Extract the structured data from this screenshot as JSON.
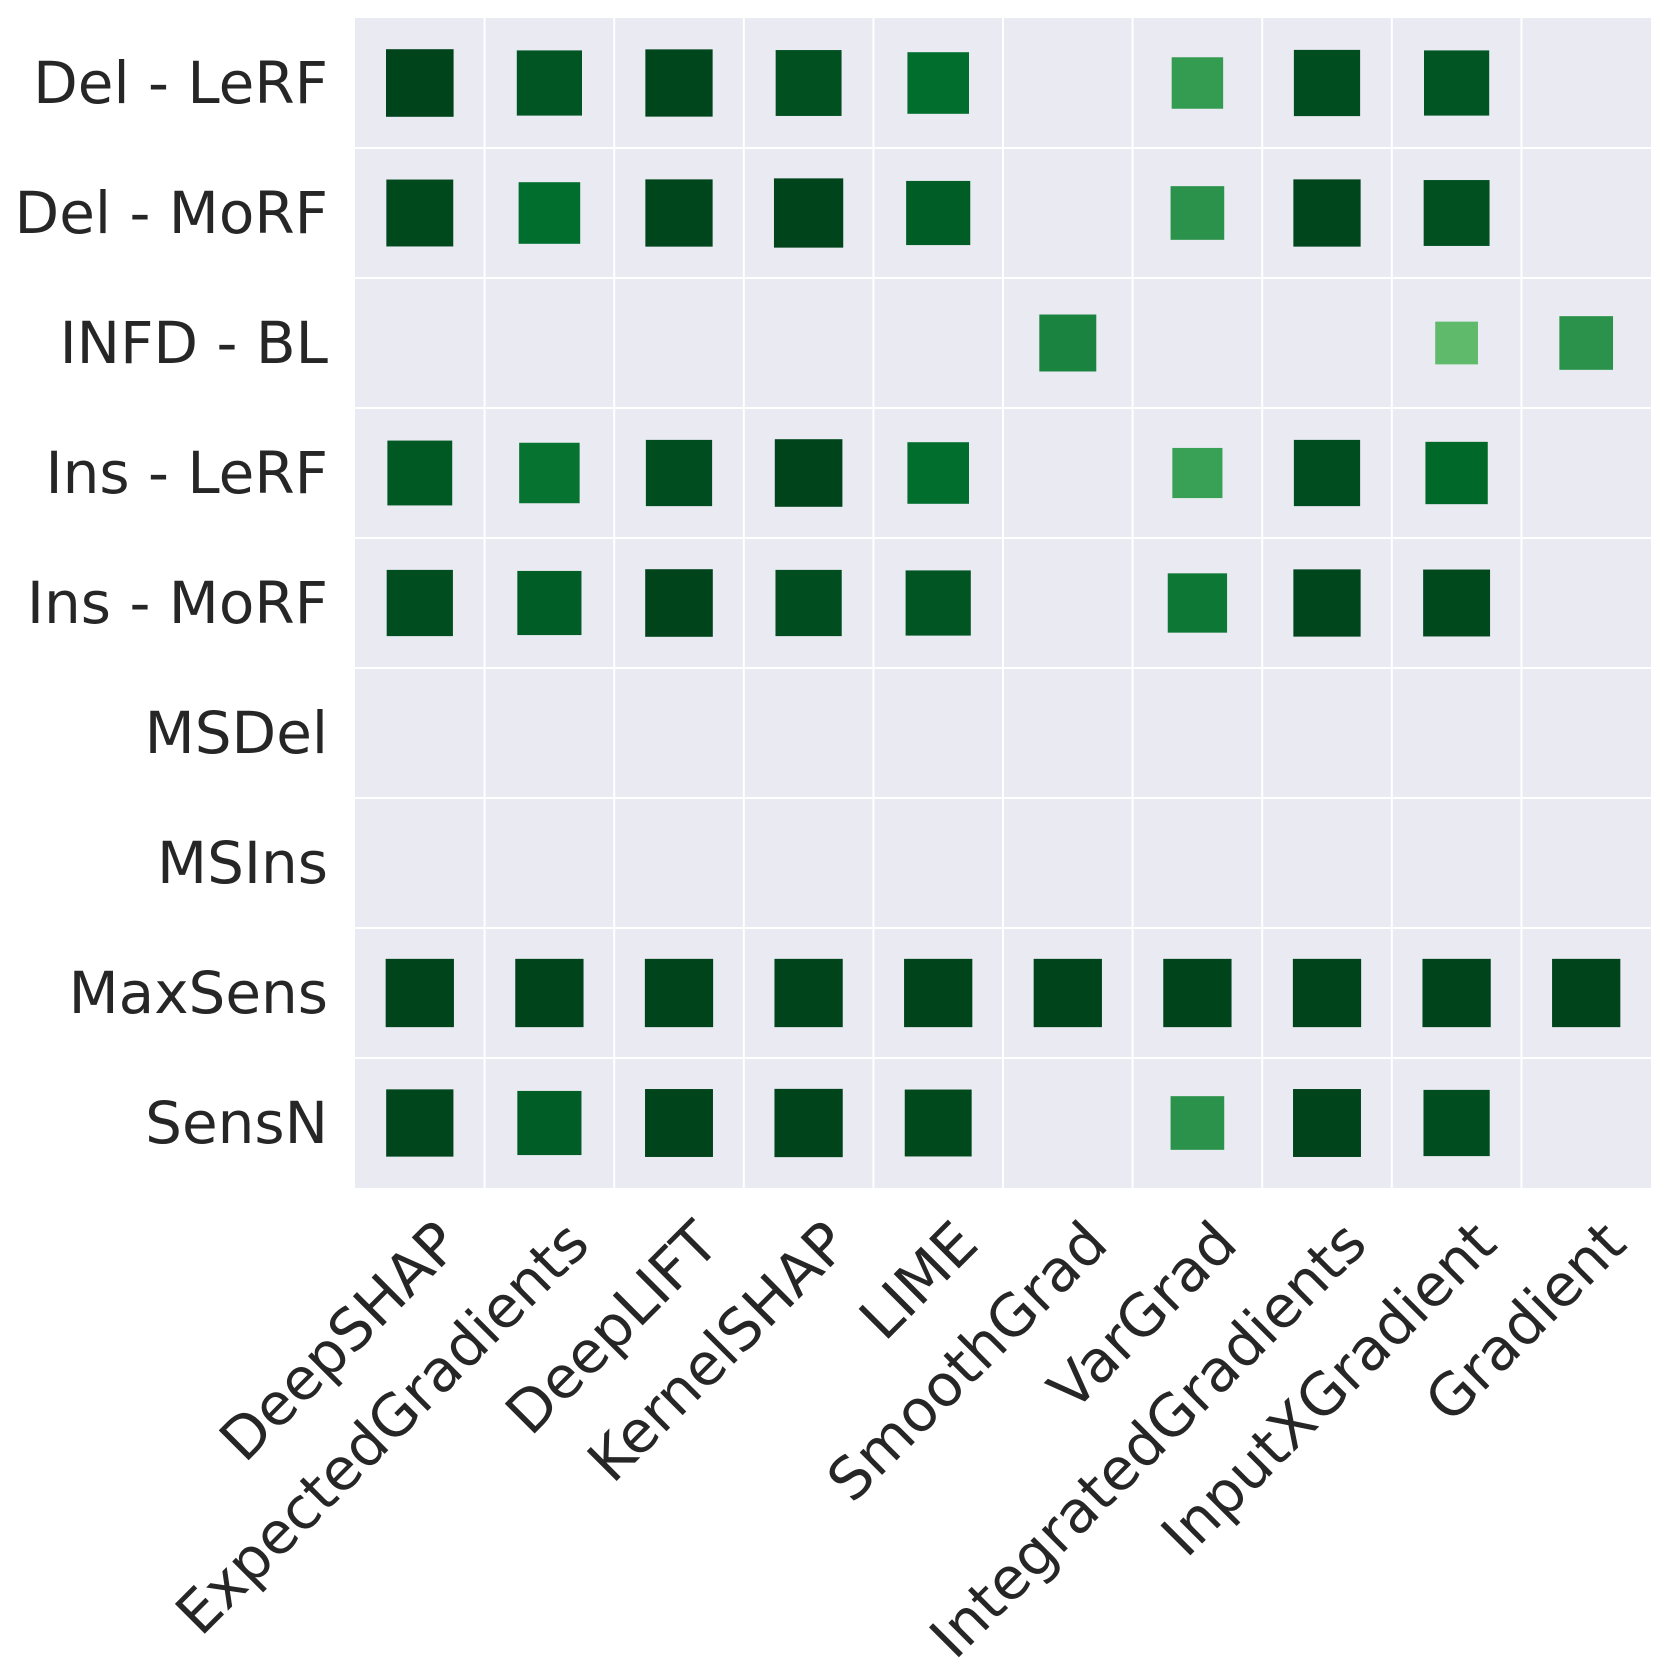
{
  "chart_data": {
    "type": "heatmap",
    "title": "",
    "xlabel": "",
    "ylabel": "",
    "grid": true,
    "legend": "none",
    "colors": {
      "background": "#eaeaf2",
      "grid": "#ffffff",
      "scale_light": "#f7fcf5",
      "scale_dark": "#00441b"
    },
    "rows": [
      "Del - LeRF",
      "Del - MoRF",
      "INFD - BL",
      "Ins - LeRF",
      "Ins - MoRF",
      "MSDel",
      "MSIns",
      "MaxSens",
      "SensN"
    ],
    "columns": [
      "DeepSHAP",
      "ExpectedGradients",
      "DeepLIFT",
      "KernelSHAP",
      "LIME",
      "SmoothGrad",
      "VarGrad",
      "IntegratedGradients",
      "InputXGradient",
      "Gradient"
    ],
    "values": [
      [
        1.0,
        0.93,
        0.99,
        0.95,
        0.83,
        0.0,
        0.58,
        0.96,
        0.93,
        0.0
      ],
      [
        0.98,
        0.83,
        0.99,
        1.05,
        0.9,
        0.0,
        0.63,
        0.99,
        0.95,
        0.0
      ],
      [
        0.0,
        0.0,
        0.0,
        0.0,
        0.0,
        0.71,
        0.0,
        0.0,
        0.4,
        0.63
      ],
      [
        0.92,
        0.8,
        0.96,
        1.0,
        0.83,
        0.0,
        0.55,
        0.96,
        0.85,
        0.0
      ],
      [
        0.96,
        0.9,
        1.0,
        0.96,
        0.93,
        0.0,
        0.77,
        0.99,
        0.98,
        0.0
      ],
      [
        0.0,
        0.0,
        0.0,
        0.0,
        0.0,
        0.0,
        0.0,
        0.0,
        0.0,
        0.0
      ],
      [
        0.0,
        0.0,
        0.0,
        0.0,
        0.0,
        0.0,
        0.0,
        0.0,
        0.0,
        0.0
      ],
      [
        1.02,
        1.02,
        1.02,
        1.02,
        1.02,
        1.02,
        1.02,
        1.02,
        1.02,
        1.02
      ],
      [
        0.99,
        0.9,
        1.01,
        1.02,
        0.98,
        0.0,
        0.63,
        1.01,
        0.96,
        0.0
      ]
    ]
  }
}
